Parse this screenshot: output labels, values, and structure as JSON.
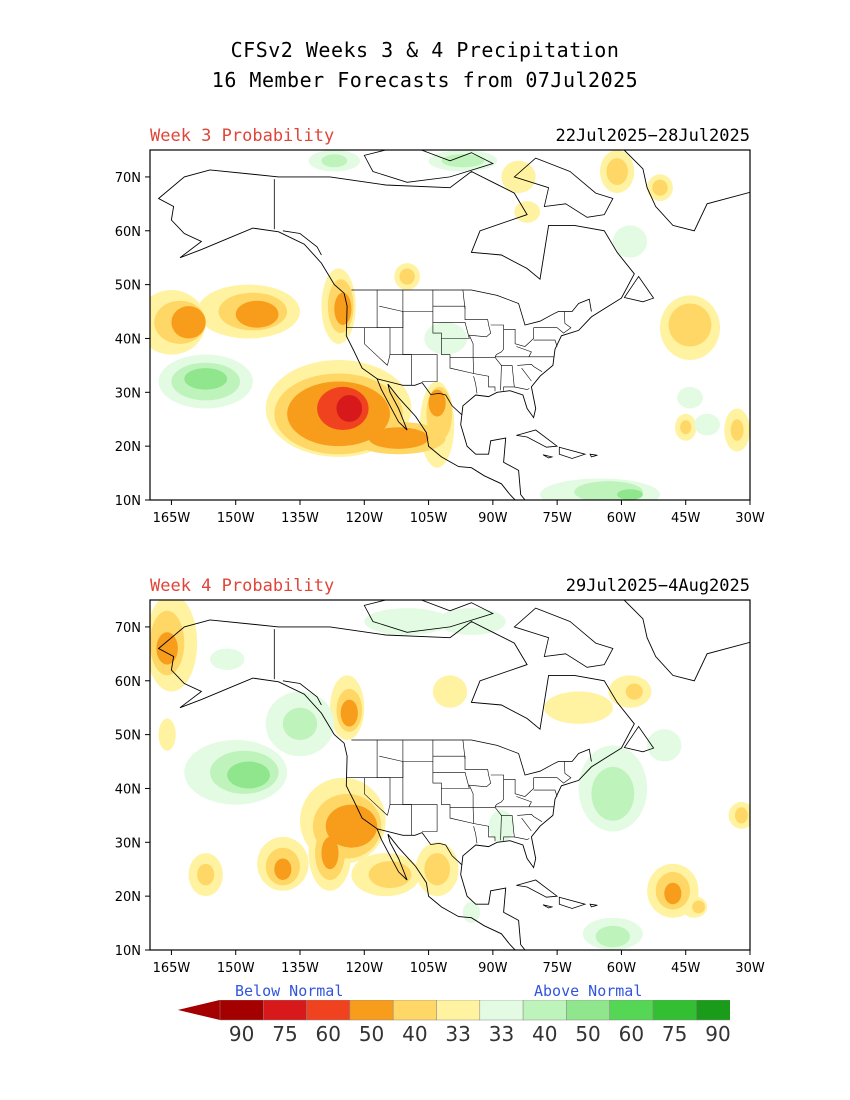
{
  "title": {
    "line1": "CFSv2 Weeks 3 & 4 Precipitation",
    "line2": "16 Member Forecasts from 07Jul2025"
  },
  "panels": [
    {
      "label": "Week 3 Probability",
      "date_range": "22Jul2025−28Jul2025"
    },
    {
      "label": "Week 4 Probability",
      "date_range": "29Jul2025−4Aug2025"
    }
  ],
  "axes": {
    "lat_labels": [
      "70N",
      "60N",
      "50N",
      "40N",
      "30N",
      "20N",
      "10N"
    ],
    "lon_labels": [
      "165W",
      "150W",
      "135W",
      "120W",
      "105W",
      "90W",
      "75W",
      "60W",
      "45W",
      "30W"
    ]
  },
  "legend": {
    "below_label": "Below Normal",
    "above_label": "Above Normal",
    "values": [
      "90",
      "75",
      "60",
      "50",
      "40",
      "33",
      "33",
      "40",
      "50",
      "60",
      "75",
      "90"
    ],
    "colors": [
      "#a50000",
      "#d7191c",
      "#f0421e",
      "#f89c1c",
      "#ffd766",
      "#fff2a0",
      "#ffffff",
      "#e2fbe2",
      "#bff3bc",
      "#8fe68c",
      "#55d655",
      "#32c032",
      "#1a9c1a"
    ]
  },
  "colors": {
    "red_label": "#e0453a",
    "blue_label": "#3355dd"
  }
}
